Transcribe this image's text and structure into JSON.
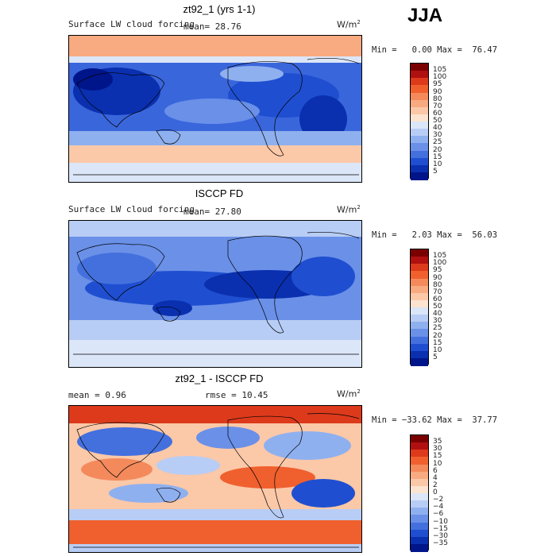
{
  "season": "JJA",
  "panels": [
    {
      "title": "zt92_1 (yrs 1-1)",
      "variable": "Surface LW cloud forcing",
      "stat1": "mean=  28.76",
      "stat2": "",
      "units": "W/m",
      "units_exp": "2",
      "minmax": "Min =   0.00 Max =  76.47",
      "scale": "abs",
      "ticks": [
        "105",
        "100",
        "95",
        "90",
        "80",
        "70",
        "60",
        "50",
        "40",
        "30",
        "25",
        "20",
        "15",
        "10",
        "5"
      ]
    },
    {
      "title": "ISCCP FD",
      "variable": "Surface LW cloud forcing",
      "stat1": "mean=  27.80",
      "stat2": "",
      "units": "W/m",
      "units_exp": "2",
      "minmax": "Min =   2.03 Max =  56.03",
      "scale": "abs",
      "ticks": [
        "105",
        "100",
        "95",
        "90",
        "80",
        "70",
        "60",
        "50",
        "40",
        "30",
        "25",
        "20",
        "15",
        "10",
        "5"
      ]
    },
    {
      "title": "zt92_1 - ISCCP FD",
      "variable": "",
      "stat1": "mean =   0.96",
      "stat2": "rmse =  10.45",
      "units": "W/m",
      "units_exp": "2",
      "minmax": "Min = −33.62 Max =  37.77",
      "scale": "diff",
      "ticks": [
        "35",
        "30",
        "15",
        "10",
        "6",
        "4",
        "2",
        "0",
        "−2",
        "−4",
        "−6",
        "−10",
        "−15",
        "−30",
        "−35"
      ]
    }
  ],
  "colors": {
    "abs": [
      "#7a0000",
      "#b01010",
      "#dd3a1c",
      "#f0602e",
      "#f48a5c",
      "#f8aa80",
      "#fbc8a8",
      "#fde4d0",
      "#dbe6f8",
      "#b8cdf5",
      "#8fb0ef",
      "#6a90e8",
      "#4470de",
      "#1f4fd0",
      "#0a30b0",
      "#00158a"
    ],
    "diff": [
      "#7a0000",
      "#b01010",
      "#dd3a1c",
      "#f0602e",
      "#f48a5c",
      "#f8aa80",
      "#fbc8a8",
      "#fde4d0",
      "#dbe6f8",
      "#b8cdf5",
      "#8fb0ef",
      "#6a90e8",
      "#4470de",
      "#1f4fd0",
      "#0a30b0",
      "#00158a"
    ]
  }
}
